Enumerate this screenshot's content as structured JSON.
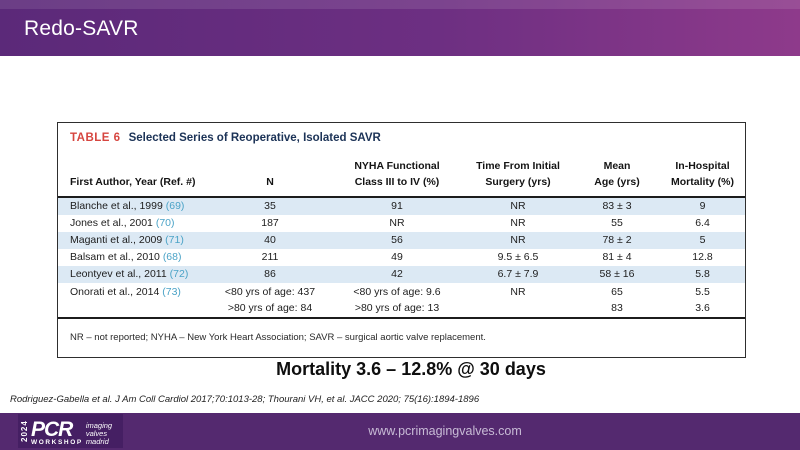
{
  "slide": {
    "title": "Redo-SAVR",
    "headline": "Mortality 3.6 – 12.8% @ 30 days",
    "citation": "Rodriguez-Gabella et al. J Am Coll Cardiol 2017;70:1013-28; Thourani VH, et al. JACC 2020; 75(16):1894-1896"
  },
  "table": {
    "label": "TABLE 6",
    "title": "Selected Series of Reoperative, Isolated SAVR",
    "columns": [
      "First Author, Year (Ref. #)",
      "N",
      "NYHA Functional\nClass III to IV (%)",
      "Time From Initial\nSurgery (yrs)",
      "Mean\nAge (yrs)",
      "In-Hospital\nMortality (%)"
    ],
    "rows": [
      {
        "author": "Blanche et al., 1999",
        "ref": "(69)",
        "n": "35",
        "nyha": "91",
        "time": "NR",
        "age": "83 ± 3",
        "mortality": "9"
      },
      {
        "author": "Jones et al., 2001",
        "ref": "(70)",
        "n": "187",
        "nyha": "NR",
        "time": "NR",
        "age": "55",
        "mortality": "6.4"
      },
      {
        "author": "Maganti et al., 2009",
        "ref": "(71)",
        "n": "40",
        "nyha": "56",
        "time": "NR",
        "age": "78 ± 2",
        "mortality": "5"
      },
      {
        "author": "Balsam et al., 2010",
        "ref": "(68)",
        "n": "211",
        "nyha": "49",
        "time": "9.5 ± 6.5",
        "age": "81 ± 4",
        "mortality": "12.8"
      },
      {
        "author": "Leontyev et al., 2011",
        "ref": "(72)",
        "n": "86",
        "nyha": "42",
        "time": "6.7 ± 7.9",
        "age": "58 ± 16",
        "mortality": "5.8"
      },
      {
        "author": "Onorati et al., 2014",
        "ref": "(73)",
        "n": "<80 yrs of age: 437\n>80 yrs of age: 84",
        "nyha": "<80 yrs of age: 9.6\n>80 yrs of age: 13",
        "time": "NR",
        "age": "65\n83",
        "mortality": "5.5\n3.6"
      }
    ],
    "footnote": "NR – not reported; NYHA – New York Heart Association; SAVR – surgical aortic valve replacement."
  },
  "footer": {
    "website": "www.pcrimagingvalves.com",
    "logo": {
      "year": "2024",
      "brand": "PCR",
      "sub": "WORKSHOP",
      "tagline": "imaging\nvalves\nmadrid"
    }
  },
  "colors": {
    "header_gradient_left": "#5b2979",
    "header_gradient_right": "#8e3a8b",
    "footer_purple": "#54296f",
    "logo_purple": "#451f63",
    "table_label_red": "#d6453f",
    "table_title_navy": "#1c3357",
    "ref_blue": "#4ba3c7",
    "row_shade_blue": "#dce9f4"
  }
}
